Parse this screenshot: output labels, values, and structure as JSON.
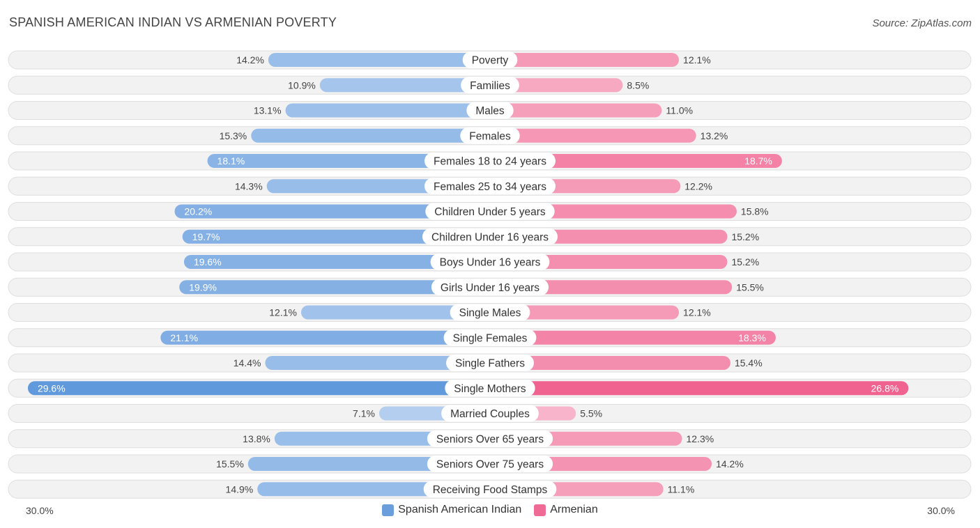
{
  "title": "SPANISH AMERICAN INDIAN VS ARMENIAN POVERTY",
  "source": "Source: ZipAtlas.com",
  "axis": {
    "left_label": "30.0%",
    "right_label": "30.0%"
  },
  "legend": {
    "left": {
      "label": "Spanish American Indian",
      "color": "#6a9fdc"
    },
    "right": {
      "label": "Armenian",
      "color": "#f06a96"
    }
  },
  "chart_data": {
    "type": "bar",
    "orientation": "horizontal-diverging",
    "title": "SPANISH AMERICAN INDIAN VS ARMENIAN POVERTY",
    "xlim": [
      -30.0,
      30.0
    ],
    "unit": "%",
    "categories": [
      "Poverty",
      "Families",
      "Males",
      "Females",
      "Females 18 to 24 years",
      "Females 25 to 34 years",
      "Children Under 5 years",
      "Children Under 16 years",
      "Boys Under 16 years",
      "Girls Under 16 years",
      "Single Males",
      "Single Females",
      "Single Fathers",
      "Single Mothers",
      "Married Couples",
      "Seniors Over 65 years",
      "Seniors Over 75 years",
      "Receiving Food Stamps"
    ],
    "series": [
      {
        "name": "Spanish American Indian",
        "values": [
          14.2,
          10.9,
          13.1,
          15.3,
          18.1,
          14.3,
          20.2,
          19.7,
          19.6,
          19.9,
          12.1,
          21.1,
          14.4,
          29.6,
          7.1,
          13.8,
          15.5,
          14.9
        ],
        "labels": [
          "14.2%",
          "10.9%",
          "13.1%",
          "15.3%",
          "18.1%",
          "14.3%",
          "20.2%",
          "19.7%",
          "19.6%",
          "19.9%",
          "12.1%",
          "21.1%",
          "14.4%",
          "29.6%",
          "7.1%",
          "13.8%",
          "15.5%",
          "14.9%"
        ]
      },
      {
        "name": "Armenian",
        "values": [
          12.1,
          8.5,
          11.0,
          13.2,
          18.7,
          12.2,
          15.8,
          15.2,
          15.2,
          15.5,
          12.1,
          18.3,
          15.4,
          26.8,
          5.5,
          12.3,
          14.2,
          11.1
        ],
        "labels": [
          "12.1%",
          "8.5%",
          "11.0%",
          "13.2%",
          "18.7%",
          "12.2%",
          "15.8%",
          "15.2%",
          "15.2%",
          "15.5%",
          "12.1%",
          "18.3%",
          "15.4%",
          "26.8%",
          "5.5%",
          "12.3%",
          "14.2%",
          "11.1%"
        ]
      }
    ],
    "legend_position": "bottom-center"
  }
}
